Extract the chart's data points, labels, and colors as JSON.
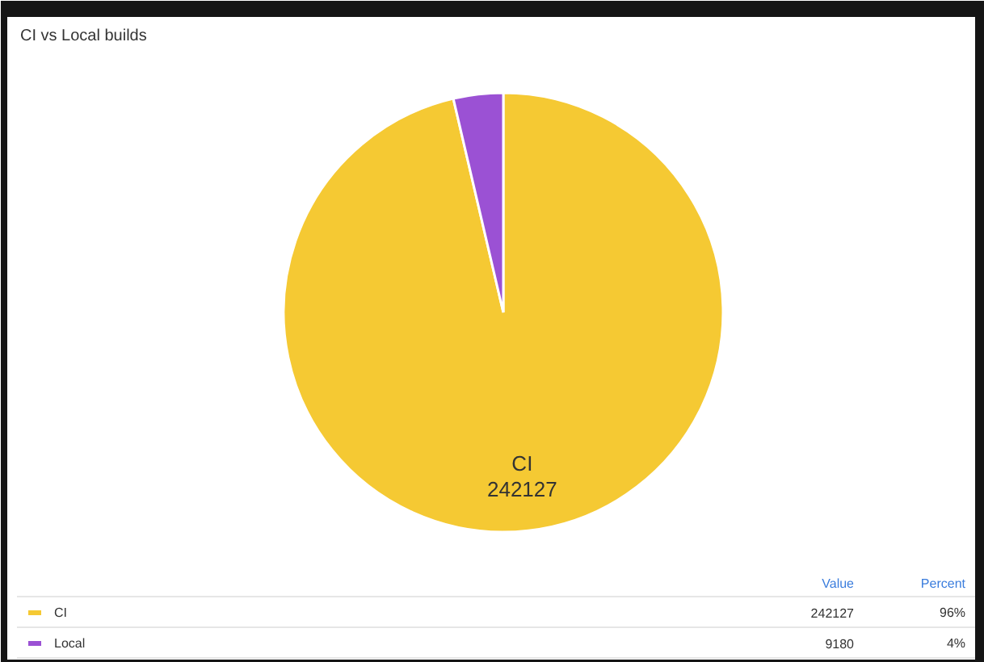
{
  "chart_data": {
    "type": "pie",
    "title": "CI vs Local builds",
    "categories": [
      "CI",
      "Local"
    ],
    "values": [
      242127,
      9180
    ],
    "colors": [
      "#f5c933",
      "#9b51d4"
    ],
    "value_labels": [
      "242127",
      null
    ],
    "legend": "bottom",
    "annotations": [
      "Value",
      "Percent",
      {
        "text": "242127",
        "x": "CI"
      },
      {
        "text": "96%",
        "x": "CI"
      },
      {
        "text": "9180",
        "x": "Local"
      },
      {
        "text": "4%",
        "x": "Local"
      }
    ]
  }
}
